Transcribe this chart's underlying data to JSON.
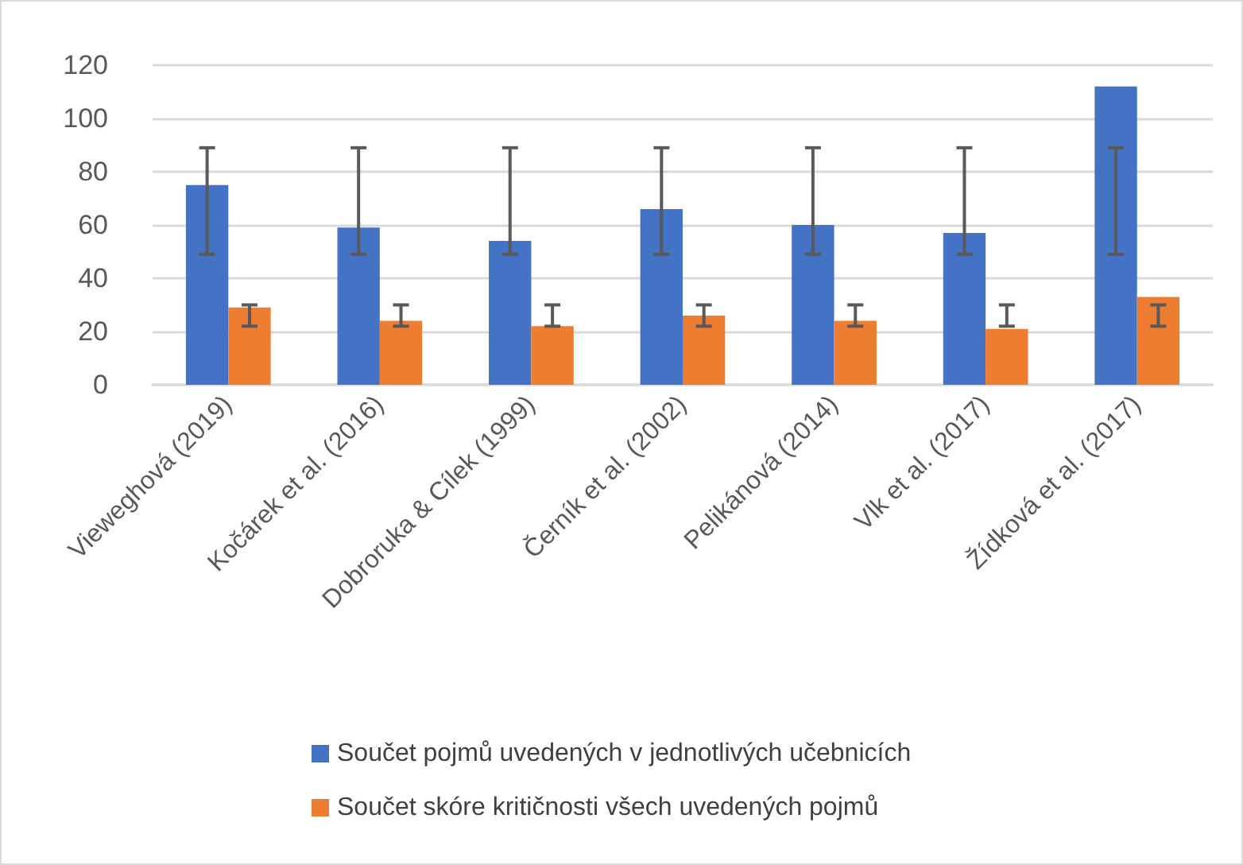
{
  "chart_data": {
    "type": "bar",
    "categories": [
      "Vieweghová (2019)",
      "Kočárek et al. (2016)",
      "Dobroruka & Cílek (1999)",
      "Černík et al. (2002)",
      "Pelikánová (2014)",
      "Vlk et al. (2017)",
      "Žídková et al. (2017)"
    ],
    "series": [
      {
        "name": "Součet pojmů uvedených v jednotlivých učebnicích",
        "color": "#4472c4",
        "values": [
          75,
          59,
          54,
          66,
          60,
          57,
          112
        ],
        "errors": [
          [
            49,
            89
          ],
          [
            49,
            89
          ],
          [
            49,
            89
          ],
          [
            49,
            89
          ],
          [
            49,
            89
          ],
          [
            49,
            89
          ],
          [
            49,
            89
          ]
        ]
      },
      {
        "name": "Součet skóre kritičnosti všech uvedených pojmů",
        "color": "#ed7d31",
        "values": [
          29,
          24,
          22,
          26,
          24,
          21,
          33
        ],
        "errors": [
          [
            22,
            30
          ],
          [
            22,
            30
          ],
          [
            22,
            30
          ],
          [
            22,
            30
          ],
          [
            22,
            30
          ],
          [
            22,
            30
          ],
          [
            22,
            30
          ]
        ]
      }
    ],
    "ylim": [
      0,
      120
    ],
    "yticks": [
      0,
      20,
      40,
      60,
      80,
      100,
      120
    ],
    "grid": "y",
    "legend": "bottom"
  }
}
